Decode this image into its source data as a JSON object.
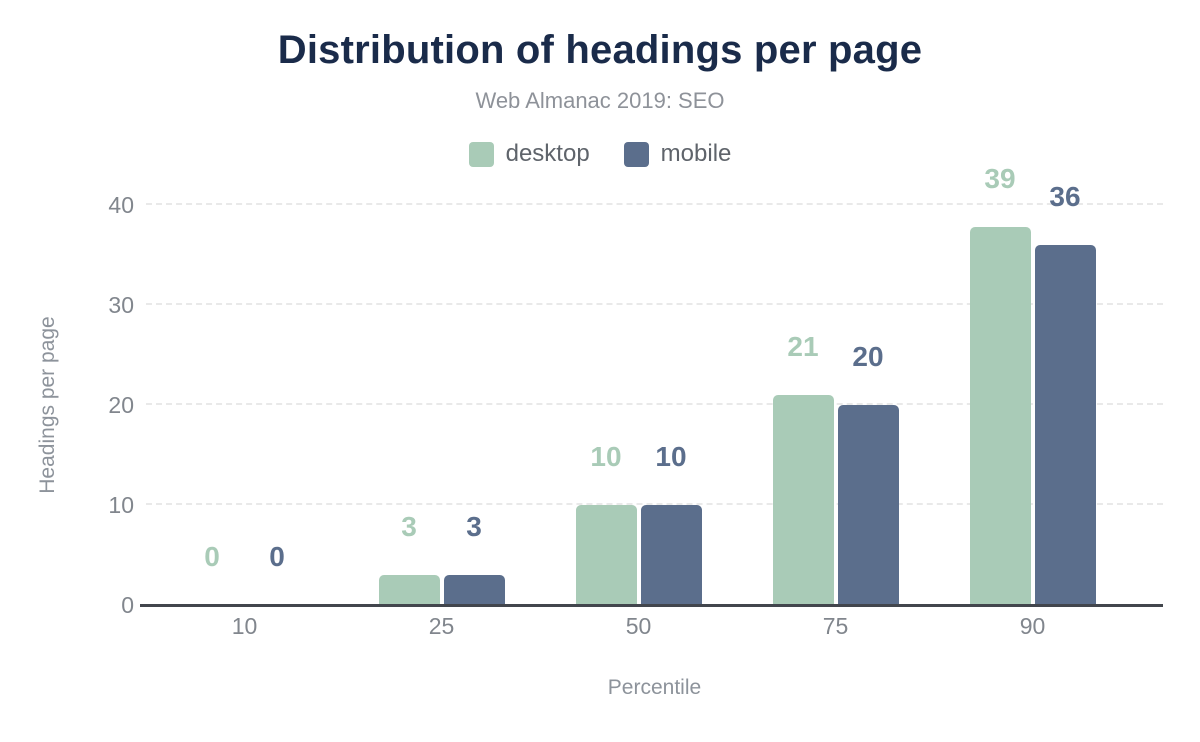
{
  "chart_data": {
    "type": "bar",
    "title": "Distribution of headings per page",
    "subtitle": "Web Almanac 2019: SEO",
    "xlabel": "Percentile",
    "ylabel": "Headings per page",
    "categories": [
      "10",
      "25",
      "50",
      "75",
      "90"
    ],
    "series": [
      {
        "name": "desktop",
        "color": "#a9cbb7",
        "values": [
          0,
          3,
          10,
          21,
          39
        ]
      },
      {
        "name": "mobile",
        "color": "#5b6e8c",
        "values": [
          0,
          3,
          10,
          20,
          36
        ]
      }
    ],
    "ylim": [
      0,
      40
    ],
    "yticks": [
      0,
      10,
      20,
      30,
      40
    ],
    "grid": "horizontal-dashed",
    "legend_position": "top",
    "value_labels": "above-bars"
  },
  "colors": {
    "title": "#1a2b4a",
    "subtitle": "#8e9299",
    "legend_text": "#5f646b",
    "tick": "#81868d",
    "axis_title": "#8d939b",
    "gridline": "#e9e9e9",
    "axis_line": "#42464d"
  }
}
